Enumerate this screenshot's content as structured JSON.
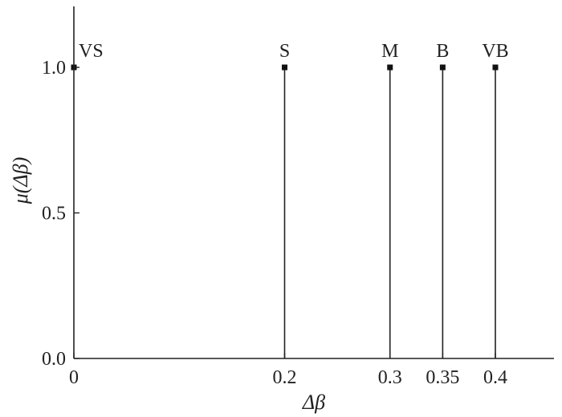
{
  "chart_data": {
    "type": "stem",
    "xlabel": "Δβ",
    "ylabel": "μ(Δβ)",
    "xlim": [
      0,
      0.45
    ],
    "ylim": [
      0,
      1.2
    ],
    "x_ticks": [
      {
        "value": 0,
        "label": "0"
      },
      {
        "value": 0.2,
        "label": "0.2"
      },
      {
        "value": 0.3,
        "label": "0.3"
      },
      {
        "value": 0.35,
        "label": "0.35"
      },
      {
        "value": 0.4,
        "label": "0.4"
      }
    ],
    "y_ticks": [
      {
        "value": 0,
        "label": "0.0"
      },
      {
        "value": 0.5,
        "label": "0.5"
      },
      {
        "value": 1.0,
        "label": "1.0"
      }
    ],
    "points": [
      {
        "label": "VS",
        "x": 0,
        "y": 1.0
      },
      {
        "label": "S",
        "x": 0.2,
        "y": 1.0
      },
      {
        "label": "M",
        "x": 0.3,
        "y": 1.0
      },
      {
        "label": "B",
        "x": 0.35,
        "y": 1.0
      },
      {
        "label": "VB",
        "x": 0.4,
        "y": 1.0
      }
    ],
    "grid": false,
    "colors": {
      "axis": "#222222",
      "marker": "#111111"
    }
  }
}
